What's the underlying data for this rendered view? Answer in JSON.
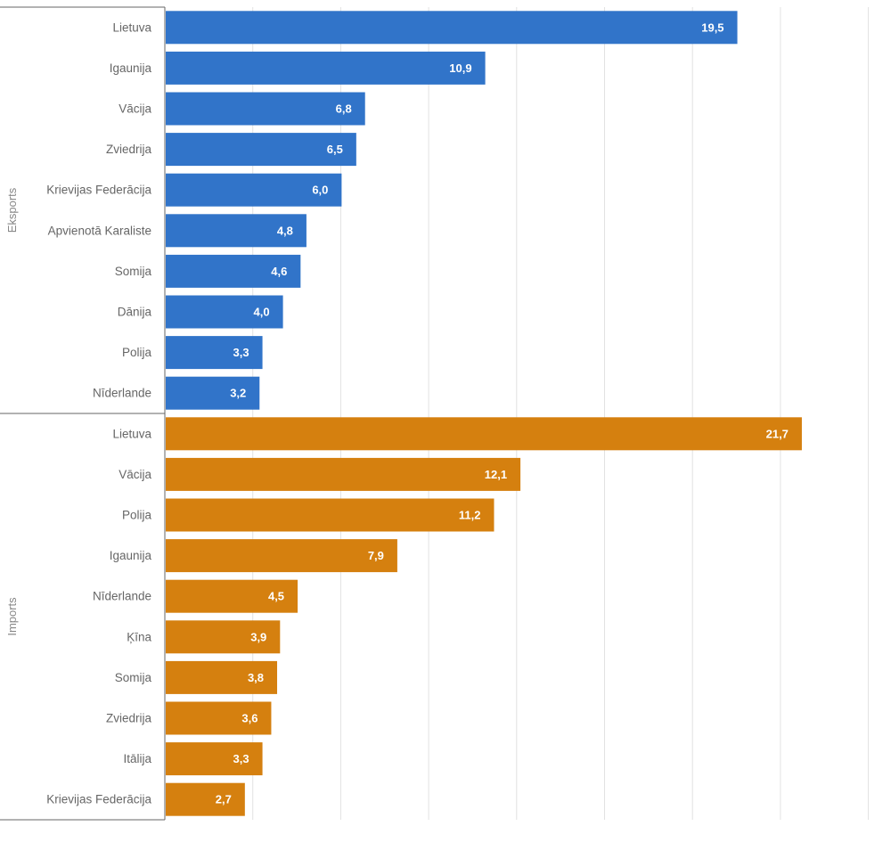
{
  "chart_data": {
    "type": "bar",
    "orientation": "horizontal",
    "xlim": [
      0,
      25
    ],
    "grid": true,
    "legend": "none",
    "value_labels": "inside-end",
    "groups": [
      {
        "name": "Eksports",
        "color": "#3174c9",
        "categories": [
          "Lietuva",
          "Igaunija",
          "Vācija",
          "Zviedrija",
          "Krievijas Federācija",
          "Apvienotā Karaliste",
          "Somija",
          "Dānija",
          "Polija",
          "Nīderlande"
        ],
        "values": [
          19.5,
          10.9,
          6.8,
          6.5,
          6.0,
          4.8,
          4.6,
          4.0,
          3.3,
          3.2
        ],
        "value_labels": [
          "19,5",
          "10,9",
          "6,8",
          "6,5",
          "6,0",
          "4,8",
          "4,6",
          "4,0",
          "3,3",
          "3,2"
        ]
      },
      {
        "name": "Imports",
        "color": "#d5800f",
        "categories": [
          "Lietuva",
          "Vācija",
          "Polija",
          "Igaunija",
          "Nīderlande",
          "Ķīna",
          "Somija",
          "Zviedrija",
          "Itālija",
          "Krievijas Federācija"
        ],
        "values": [
          21.7,
          12.1,
          11.2,
          7.9,
          4.5,
          3.9,
          3.8,
          3.6,
          3.3,
          2.7
        ],
        "value_labels": [
          "21,7",
          "12,1",
          "11,2",
          "7,9",
          "4,5",
          "3,9",
          "3,8",
          "3,6",
          "3,3",
          "2,7"
        ]
      }
    ]
  }
}
